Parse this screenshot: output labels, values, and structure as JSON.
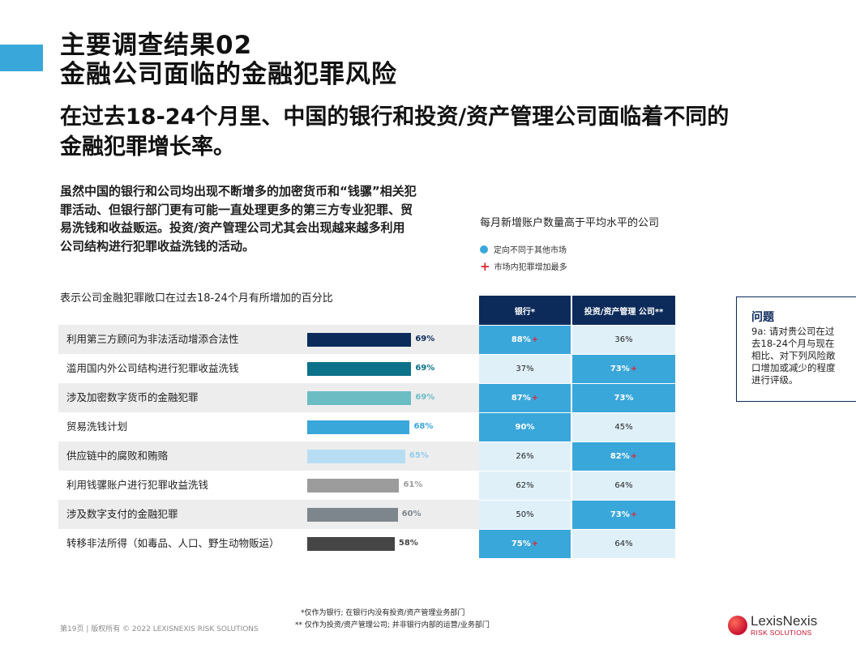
{
  "title_line1": "主要调查结果02",
  "title_line2": "金融公司面临的金融犯罪风险",
  "subtitle_line1": "在过去18-24个月里、中国的银行和投资/资产管理公司面临着不同的",
  "subtitle_line2": "金融犯罪增长率。",
  "intro": "虽然中国的银行和公司均出现不断增多的加密货币和“钱骡”相关犯罪活动、但银行部门更有可能一直处理更多的第三方专业犯罪、贸易洗钱和收益贩运。投资/资产管理公司尤其会出现越来越多利用公司结构进行犯罪收益洗钱的活动。",
  "chart_title": "表示公司金融犯罪敞口在过去18-24个月有所增加的百分比",
  "right_title": "每月新增账户数量高于平均水平的公司",
  "legend": {
    "item1": "定向不同于其他市场",
    "item2": "市场内犯罪增加最多",
    "color_blue": "#3aa7db",
    "color_red": "#e0242f"
  },
  "table_headers": {
    "banks": "银行*",
    "investment": "投资/资产管理 公司**"
  },
  "question": {
    "title": "问题",
    "text": "9a: 请对贵公司在过去18-24个月与现在相比、对下列风险敞口增加或减少的程度进行评级。"
  },
  "footnote1": "*仅作为银行; 在银行内没有投资/资产管理业务部门",
  "footnote2": "** 仅作为投资/资产管理公司; 并非银行内部的运营/业务部门",
  "footer": "第19页 |   版权所有 © 2022 LEXISNEXIS RISK SOLUTIONS",
  "logo": {
    "name": "LexisNexis",
    "sub": "RISK SOLUTIONS"
  },
  "chart_data": {
    "type": "bar",
    "categories": [
      "利用第三方顾问为非法活动增添合法性",
      "滥用国内外公司结构进行犯罪收益洗钱",
      "涉及加密数字货币的金融犯罪",
      "贸易洗钱计划",
      "供应链中的腐败和贿赂",
      "利用钱骡账户进行犯罪收益洗钱",
      "涉及数字支付的金融犯罪",
      "转移非法所得（如毒品、人口、野生动物贩运）"
    ],
    "values": [
      69,
      69,
      69,
      68,
      65,
      61,
      60,
      58
    ],
    "value_labels": [
      "69%",
      "69%",
      "69%",
      "68%",
      "65%",
      "61%",
      "60%",
      "58%"
    ],
    "bar_colors": [
      "#0c2b5a",
      "#0b7289",
      "#6cbcc4",
      "#3aa7db",
      "#b7ddf3",
      "#9c9c9c",
      "#7e868d",
      "#454545"
    ],
    "label_colors": [
      "#0c2b5a",
      "#0b7289",
      "#6cbcc4",
      "#3aa7db",
      "#8fcdee",
      "#9c9c9c",
      "#7e868d",
      "#454545"
    ],
    "xlim": [
      0,
      100
    ],
    "table": {
      "banks": [
        "88%",
        "37%",
        "87%",
        "90%",
        "26%",
        "62%",
        "50%",
        "75%"
      ],
      "banks_highlight": [
        true,
        false,
        true,
        true,
        false,
        false,
        false,
        true
      ],
      "banks_plus": [
        true,
        false,
        true,
        false,
        false,
        false,
        false,
        true
      ],
      "investment": [
        "36%",
        "73%",
        "73%",
        "45%",
        "82%",
        "64%",
        "73%",
        "64%"
      ],
      "investment_highlight": [
        false,
        true,
        true,
        false,
        true,
        false,
        true,
        false
      ],
      "investment_plus": [
        false,
        true,
        false,
        false,
        true,
        false,
        true,
        false
      ]
    }
  }
}
